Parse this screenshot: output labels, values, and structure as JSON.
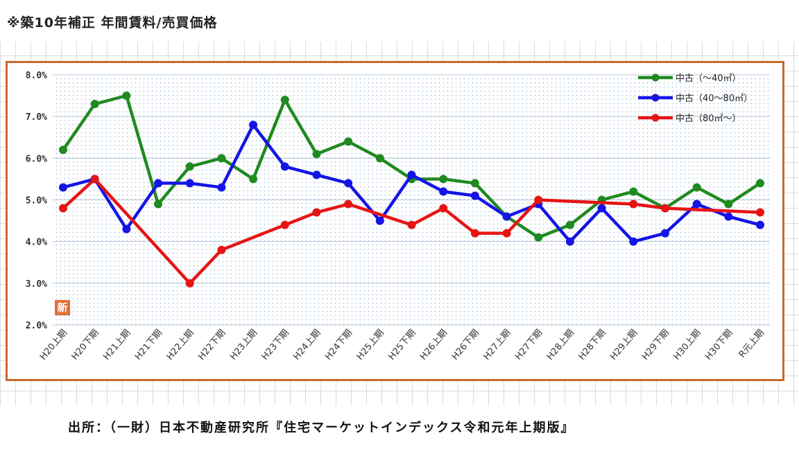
{
  "header": {
    "title": "※築10年補正 年間賃料/売買価格"
  },
  "badge": {
    "label": "新"
  },
  "footer": {
    "source": "出所：（一財）日本不動産研究所『住宅マーケットインデックス令和元年上期版』"
  },
  "colors": {
    "frame": "#c8692a",
    "green": "#1f8a1f",
    "blue": "#1414e6",
    "red": "#e61414"
  },
  "chart_data": {
    "type": "line",
    "title": "",
    "xlabel": "",
    "ylabel": "",
    "ylim": [
      2.0,
      8.0
    ],
    "yticks": [
      "8.0%",
      "7.0%",
      "6.0%",
      "5.0%",
      "4.0%",
      "3.0%",
      "2.0%"
    ],
    "ytick_values": [
      8,
      7,
      6,
      5,
      4,
      3,
      2
    ],
    "legend_position": "top-right",
    "grid": true,
    "categories": [
      "H20上期",
      "H20下期",
      "H21上期",
      "H21下期",
      "H22上期",
      "H22下期",
      "H23上期",
      "H23下期",
      "H24上期",
      "H24下期",
      "H25上期",
      "H25下期",
      "H26上期",
      "H26下期",
      "H27上期",
      "H27下期",
      "H28上期",
      "H28下期",
      "H29上期",
      "H29下期",
      "H30上期",
      "H30下期",
      "R元上期"
    ],
    "series": [
      {
        "name": "中古（〜40㎡）",
        "color": "#1f8a1f",
        "values": [
          6.2,
          7.3,
          7.5,
          4.9,
          5.8,
          6.0,
          5.5,
          7.4,
          6.1,
          6.4,
          6.0,
          5.5,
          5.5,
          5.4,
          4.6,
          4.1,
          4.4,
          5.0,
          5.2,
          4.8,
          5.3,
          4.9,
          5.4
        ]
      },
      {
        "name": "中古（40〜80㎡）",
        "color": "#1414e6",
        "values": [
          5.3,
          5.5,
          4.3,
          5.4,
          5.4,
          5.3,
          6.8,
          5.8,
          5.6,
          5.4,
          4.5,
          5.6,
          5.2,
          5.1,
          4.6,
          4.9,
          4.0,
          4.8,
          4.0,
          4.2,
          4.9,
          4.6,
          4.4
        ]
      },
      {
        "name": "中古（80㎡〜）",
        "color": "#e61414",
        "values": [
          4.8,
          5.5,
          null,
          null,
          3.0,
          3.8,
          null,
          4.4,
          4.7,
          4.9,
          null,
          4.4,
          4.8,
          4.2,
          4.2,
          5.0,
          null,
          null,
          4.9,
          4.8,
          null,
          null,
          4.7
        ]
      }
    ]
  }
}
